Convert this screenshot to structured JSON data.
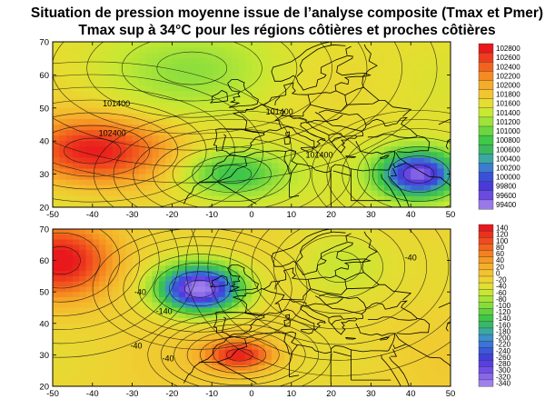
{
  "title_line1": "Situation de pression moyenne issue de l’analyse composite (Tmax et Pmer)",
  "title_line2": "Tmax sup à 34°C pour les régions côtières et proches côtières",
  "chart_data": [
    {
      "type": "heatmap",
      "panel": "top",
      "xlim": [
        -50,
        50
      ],
      "ylim": [
        20,
        70
      ],
      "x_ticks": [
        "-50",
        "-40",
        "-30",
        "-20",
        "-10",
        "0",
        "10",
        "20",
        "30",
        "40",
        "50"
      ],
      "y_ticks": [
        "70",
        "60",
        "50",
        "40",
        "30",
        "20"
      ],
      "x_tick_values": [
        -50,
        -40,
        -30,
        -20,
        -10,
        0,
        10,
        20,
        30,
        40,
        50
      ],
      "y_tick_values": [
        70,
        60,
        50,
        40,
        30,
        20
      ],
      "colorbar_levels": [
        "102800",
        "102600",
        "102400",
        "102200",
        "102000",
        "101800",
        "101600",
        "101400",
        "101200",
        "101000",
        "100800",
        "100600",
        "100400",
        "100200",
        "100000",
        "99800",
        "99600",
        "99400"
      ],
      "colorbar_colors": [
        "#e8181c",
        "#ee3c1e",
        "#f2641e",
        "#f58a22",
        "#f6ab2a",
        "#f2c630",
        "#e6dd30",
        "#c8e832",
        "#9ee23a",
        "#6cd640",
        "#40c848",
        "#3cb85c",
        "#3aa8a0",
        "#3a7cd0",
        "#3a50d8",
        "#4a3ad8",
        "#6a4ae0",
        "#9a78ea"
      ],
      "contour_labels": [
        {
          "text": "101400",
          "x": -34,
          "y": 50.5
        },
        {
          "text": "102400",
          "x": -35,
          "y": 41.5
        },
        {
          "text": "101400",
          "x": 7,
          "y": 48
        },
        {
          "text": "101400",
          "x": 17,
          "y": 35
        }
      ],
      "pressure_centers": [
        {
          "x": -40,
          "y": 37,
          "value": 102800,
          "sx": 13,
          "sy": 7
        },
        {
          "x": 42,
          "y": 30,
          "value": 99400,
          "sx": 7,
          "sy": 5
        },
        {
          "x": -15,
          "y": 62,
          "value": 101200,
          "sx": 16,
          "sy": 9
        },
        {
          "x": -5,
          "y": 30,
          "value": 100700,
          "sx": 9,
          "sy": 5
        }
      ]
    },
    {
      "type": "heatmap",
      "panel": "bottom",
      "xlim": [
        -50,
        50
      ],
      "ylim": [
        20,
        70
      ],
      "x_ticks": [
        "-50",
        "-40",
        "-30",
        "-20",
        "-10",
        "0",
        "10",
        "20",
        "30",
        "40",
        "50"
      ],
      "y_ticks": [
        "70",
        "60",
        "50",
        "40",
        "30",
        "20"
      ],
      "x_tick_values": [
        -50,
        -40,
        -30,
        -20,
        -10,
        0,
        10,
        20,
        30,
        40,
        50
      ],
      "y_tick_values": [
        70,
        60,
        50,
        40,
        30,
        20
      ],
      "colorbar_levels": [
        "140",
        "120",
        "100",
        "80",
        "60",
        "40",
        "20",
        "0",
        "-20",
        "-40",
        "-60",
        "-80",
        "-100",
        "-120",
        "-140",
        "-160",
        "-180",
        "-200",
        "-220",
        "-240",
        "-260",
        "-280",
        "-300",
        "-320",
        "-340"
      ],
      "colorbar_colors": [
        "#e8181c",
        "#ec301c",
        "#f04a1e",
        "#f2641e",
        "#f48020",
        "#f59a24",
        "#f6b028",
        "#f2c230",
        "#eed232",
        "#e2de32",
        "#c8e632",
        "#a8e236",
        "#86dc3c",
        "#60d240",
        "#3ec648",
        "#36b868",
        "#3aa8a0",
        "#3a90c8",
        "#3a74d8",
        "#3a58d8",
        "#4040d8",
        "#5a3ee0",
        "#7050e4",
        "#8868e8",
        "#a080ec"
      ],
      "contour_labels": [
        {
          "text": "-40",
          "x": -28,
          "y": 49
        },
        {
          "text": "-40",
          "x": 40,
          "y": 60
        },
        {
          "text": "-140",
          "x": -22,
          "y": 43
        },
        {
          "text": "-40",
          "x": -29,
          "y": 32
        },
        {
          "text": "-40",
          "x": -21,
          "y": 28
        }
      ],
      "pressure_centers": [
        {
          "x": -48,
          "y": 60,
          "value": 140,
          "sx": 9,
          "sy": 8
        },
        {
          "x": -13,
          "y": 51,
          "value": -340,
          "sx": 7,
          "sy": 5
        },
        {
          "x": -3,
          "y": 30,
          "value": 130,
          "sx": 6,
          "sy": 3.5
        },
        {
          "x": 22,
          "y": 58,
          "value": -70,
          "sx": 10,
          "sy": 9
        }
      ]
    }
  ]
}
